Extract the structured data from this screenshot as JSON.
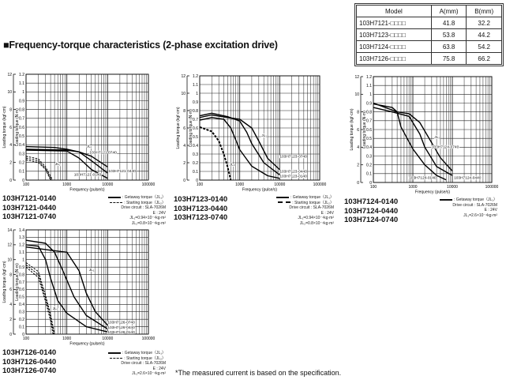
{
  "table": {
    "headers": [
      "Model",
      "A(mm)",
      "B(mm)"
    ],
    "rows": [
      [
        "103H7121-□□□□",
        "41.8",
        "32.2"
      ],
      [
        "103H7123-□□□□",
        "53.8",
        "44.2"
      ],
      [
        "103H7124-□□□□",
        "63.8",
        "54.2"
      ],
      [
        "103H7126-□□□□",
        "75.8",
        "66.2"
      ]
    ]
  },
  "title": "■Frequency-torque characteristics (2-phase excitation drive)",
  "footnote": "*The measured current is based on the specification.",
  "charts": [
    {
      "models": [
        "103H7121-0140",
        "103H7121-0440",
        "103H7121-0740"
      ],
      "legend": {
        "getaway": ": Getaway torque（JL₁）",
        "starting": ": Starting torque（JL₂）",
        "circuit": "Drive circuit : SLA-7026M",
        "voltage": "E : 24V",
        "jl1": "JL₁=0.94×10⁻⁴kg·m²",
        "jl2": "JL₂=0.8×10⁻⁴kg·m²"
      }
    },
    {
      "models": [
        "103H7123-0140",
        "103H7123-0440",
        "103H7123-0740"
      ],
      "legend": {
        "getaway": ": Getaway torque（JL₁）",
        "starting": ": Starting torque（JL₂）",
        "circuit": "Drive circuit : SLA-7026M",
        "voltage": "E : 24V",
        "jl1": "JL₁=0.94×10⁻⁴kg·m²",
        "jl2": "JL₂=0.8×10⁻⁴kg·m²"
      }
    },
    {
      "models": [
        "103H7124-0140",
        "103H7124-0440",
        "103H7124-0740"
      ],
      "legend": {
        "getaway": ": Getaway torque（JL₁）",
        "circuit": "Drive circuit : SLA-7026M",
        "voltage": "E : 24V",
        "jl1": "JL₁=2.6×10⁻⁴kg·m²"
      }
    },
    {
      "models": [
        "103H7126-0140",
        "103H7126-0440",
        "103H7126-0740"
      ],
      "legend": {
        "getaway": ": Getaway torque（JL₁）",
        "starting": ": Starting torque（JL₂）",
        "circuit": "Drive circuit : SLA-7026M",
        "voltage": "E : 24V",
        "jl1": "JL₁=2.6×10⁻⁴kg·m²"
      }
    }
  ],
  "chart_data": [
    {
      "type": "line",
      "xlabel": "Frequency (pulse/s)",
      "ylabel": "Loading torque (N·m)",
      "y2label": "Loading torque (kgf·cm)",
      "xscale": "log",
      "xlim": [
        100,
        100000
      ],
      "ylim": [
        0,
        1.2
      ],
      "y2lim": [
        0,
        12
      ],
      "grid": true,
      "xticks": [
        "100",
        "1000",
        "10000",
        "100000"
      ],
      "yticks": [
        "0",
        "0.1",
        "0.2",
        "0.3",
        "0.4",
        "0.5",
        "0.6",
        "0.7",
        "0.8",
        "0.9",
        "1",
        "1.1",
        "1.2"
      ],
      "y2ticks": [
        "0",
        "2",
        "4",
        "6",
        "8",
        "10",
        "12"
      ],
      "series": [
        {
          "name": "103H7121-0740",
          "style": "solid",
          "points": [
            [
              100,
              0.38
            ],
            [
              500,
              0.37
            ],
            [
              1000,
              0.35
            ],
            [
              2000,
              0.32
            ],
            [
              4000,
              0.27
            ],
            [
              10000,
              0.15
            ]
          ]
        },
        {
          "name": "103H7121-0440",
          "style": "solid",
          "points": [
            [
              100,
              0.35
            ],
            [
              1000,
              0.34
            ],
            [
              2000,
              0.32
            ],
            [
              4000,
              0.22
            ],
            [
              10000,
              0.08
            ]
          ]
        },
        {
          "name": "103H7121-0140",
          "style": "solid",
          "points": [
            [
              100,
              0.34
            ],
            [
              1000,
              0.33
            ],
            [
              2000,
              0.25
            ],
            [
              4000,
              0.12
            ],
            [
              10000,
              0.02
            ]
          ]
        },
        {
          "style": "dashed",
          "points": [
            [
              100,
              0.27
            ],
            [
              200,
              0.24
            ],
            [
              300,
              0.15
            ],
            [
              450,
              0
            ]
          ]
        },
        {
          "style": "dashed",
          "points": [
            [
              100,
              0.25
            ],
            [
              200,
              0.22
            ],
            [
              300,
              0.13
            ],
            [
              420,
              0
            ]
          ]
        },
        {
          "style": "dashed",
          "points": [
            [
              100,
              0.23
            ],
            [
              200,
              0.2
            ],
            [
              300,
              0.12
            ],
            [
              400,
              0
            ]
          ]
        }
      ],
      "annotations": [
        {
          "text": "JL₁",
          "x": 3000,
          "y": 0.37
        },
        {
          "text": "JL₂",
          "x": 520,
          "y": 0.17
        },
        {
          "text": "103H7121-0740",
          "x": 3600,
          "y": 0.3
        },
        {
          "text": "103H7121-0440",
          "x": 10500,
          "y": 0.09
        },
        {
          "text": "103H7121-0140",
          "x": 1500,
          "y": 0.05
        }
      ]
    },
    {
      "type": "line",
      "xlabel": "Frequency (pulse/s)",
      "ylabel": "Loading torque (N·m)",
      "y2label": "Loading torque (kgf·cm)",
      "xscale": "log",
      "xlim": [
        100,
        100000
      ],
      "ylim": [
        0,
        1.2
      ],
      "y2lim": [
        0,
        12
      ],
      "grid": true,
      "xticks": [
        "100",
        "1000",
        "10000",
        "100000"
      ],
      "yticks": [
        "0",
        "0.1",
        "0.2",
        "0.3",
        "0.4",
        "0.5",
        "0.6",
        "0.7",
        "0.8",
        "0.9",
        "1",
        "1.1",
        "1.2"
      ],
      "y2ticks": [
        "0",
        "2",
        "4",
        "6",
        "8",
        "10",
        "12"
      ],
      "series": [
        {
          "name": "103H7123-0740",
          "style": "solid",
          "points": [
            [
              100,
              0.72
            ],
            [
              200,
              0.75
            ],
            [
              500,
              0.72
            ],
            [
              1000,
              0.7
            ],
            [
              2000,
              0.6
            ],
            [
              3000,
              0.45
            ],
            [
              5000,
              0.25
            ],
            [
              10000,
              0.12
            ]
          ]
        },
        {
          "name": "103H7123-0440",
          "style": "solid",
          "points": [
            [
              100,
              0.74
            ],
            [
              200,
              0.77
            ],
            [
              500,
              0.73
            ],
            [
              1000,
              0.68
            ],
            [
              1500,
              0.55
            ],
            [
              2000,
              0.42
            ],
            [
              4000,
              0.2
            ],
            [
              10000,
              0.06
            ]
          ]
        },
        {
          "name": "103H7123-0140",
          "style": "solid",
          "points": [
            [
              100,
              0.69
            ],
            [
              200,
              0.72
            ],
            [
              400,
              0.7
            ],
            [
              600,
              0.6
            ],
            [
              1000,
              0.35
            ],
            [
              2000,
              0.16
            ],
            [
              5000,
              0.05
            ],
            [
              10000,
              0.02
            ]
          ]
        },
        {
          "style": "dashed-thick",
          "points": [
            [
              100,
              0.61
            ],
            [
              200,
              0.56
            ],
            [
              300,
              0.45
            ],
            [
              400,
              0.3
            ],
            [
              500,
              0.15
            ],
            [
              600,
              0
            ]
          ]
        }
      ],
      "annotations": [
        {
          "text": "JL₁",
          "x": 3500,
          "y": 0.5
        },
        {
          "text": "JL₂",
          "x": 550,
          "y": 0.17
        },
        {
          "text": "103H7123-0740",
          "x": 10000,
          "y": 0.26
        },
        {
          "text": "103H7123-0440",
          "x": 10000,
          "y": 0.08
        },
        {
          "text": "103H7123-0140",
          "x": 10000,
          "y": 0.03
        }
      ]
    },
    {
      "type": "line",
      "xlabel": "Frequency (pulse/s)",
      "ylabel": "Loading torque (N·m)",
      "y2label": "Loading torque (kgf·cm)",
      "xscale": "log",
      "xlim": [
        100,
        100000
      ],
      "ylim": [
        0,
        1.2
      ],
      "y2lim": [
        0,
        12
      ],
      "grid": true,
      "xticks": [
        "100",
        "1000",
        "10000",
        "100000"
      ],
      "yticks": [
        "0",
        "0.1",
        "0.2",
        "0.3",
        "0.4",
        "0.5",
        "0.6",
        "0.7",
        "0.8",
        "0.9",
        "1",
        "1.1",
        "1.2"
      ],
      "y2ticks": [
        "0",
        "2",
        "4",
        "6",
        "8",
        "10",
        "12"
      ],
      "series": [
        {
          "name": "103H7124-0140",
          "style": "solid",
          "points": [
            [
              100,
              0.89
            ],
            [
              300,
              0.85
            ],
            [
              400,
              0.8
            ],
            [
              500,
              0.63
            ],
            [
              1000,
              0.38
            ],
            [
              2000,
              0.2
            ],
            [
              4000,
              0.08
            ],
            [
              7000,
              0.03
            ]
          ]
        },
        {
          "name": "103H7124-0440",
          "style": "solid",
          "points": [
            [
              100,
              0.85
            ],
            [
              300,
              0.8
            ],
            [
              800,
              0.75
            ],
            [
              1500,
              0.55
            ],
            [
              2000,
              0.4
            ],
            [
              4000,
              0.18
            ],
            [
              10000,
              0.08
            ]
          ]
        },
        {
          "name": "103H7124-0740",
          "style": "solid",
          "points": [
            [
              100,
              0.9
            ],
            [
              400,
              0.8
            ],
            [
              800,
              0.78
            ],
            [
              1500,
              0.68
            ],
            [
              3000,
              0.45
            ],
            [
              5000,
              0.28
            ],
            [
              10000,
              0.13
            ]
          ]
        }
      ],
      "annotations": [
        {
          "text": "JL₁",
          "x": 3500,
          "y": 0.5
        },
        {
          "text": "103H7124-0740",
          "x": 3000,
          "y": 0.39
        },
        {
          "text": "103H7124-0140",
          "x": 800,
          "y": 0.04
        },
        {
          "text": "103H7124-0440",
          "x": 11000,
          "y": 0.04
        }
      ]
    },
    {
      "type": "line",
      "xlabel": "Frequency (pulse/s)",
      "ylabel": "Loading torque (N·m)",
      "y2label": "Loading torque (kgf·cm)",
      "xscale": "log",
      "xlim": [
        100,
        100000
      ],
      "ylim": [
        0,
        1.4
      ],
      "y2lim": [
        0,
        14
      ],
      "grid": true,
      "xticks": [
        "100",
        "1000",
        "10000",
        "100000"
      ],
      "yticks": [
        "0",
        "0.1",
        "0.2",
        "0.3",
        "0.4",
        "0.5",
        "0.6",
        "0.7",
        "0.8",
        "0.9",
        "1",
        "1.1",
        "1.2",
        "1.3",
        "1.4"
      ],
      "y2ticks": [
        "0",
        "2",
        "4",
        "6",
        "8",
        "10",
        "12",
        "14"
      ],
      "series": [
        {
          "name": "103H7126-0140",
          "style": "solid",
          "points": [
            [
              100,
              1.2
            ],
            [
              200,
              1.18
            ],
            [
              300,
              1.0
            ],
            [
              400,
              0.75
            ],
            [
              600,
              0.45
            ],
            [
              1000,
              0.28
            ],
            [
              3000,
              0.1
            ],
            [
              10000,
              0.03
            ]
          ]
        },
        {
          "name": "103H7126-0440",
          "style": "solid",
          "points": [
            [
              100,
              1.26
            ],
            [
              300,
              1.22
            ],
            [
              500,
              1.1
            ],
            [
              800,
              0.85
            ],
            [
              1500,
              0.5
            ],
            [
              3000,
              0.25
            ],
            [
              10000,
              0.07
            ]
          ]
        },
        {
          "name": "103H7126-0740",
          "style": "solid",
          "points": [
            [
              100,
              1.17
            ],
            [
              500,
              1.12
            ],
            [
              1000,
              1.1
            ],
            [
              2000,
              0.85
            ],
            [
              3000,
              0.55
            ],
            [
              5000,
              0.3
            ],
            [
              10000,
              0.12
            ]
          ]
        },
        {
          "style": "dashed",
          "points": [
            [
              100,
              0.96
            ],
            [
              200,
              0.84
            ],
            [
              300,
              0.52
            ],
            [
              400,
              0.26
            ],
            [
              500,
              0
            ]
          ]
        },
        {
          "style": "dashed",
          "points": [
            [
              100,
              0.93
            ],
            [
              200,
              0.8
            ],
            [
              300,
              0.48
            ],
            [
              400,
              0.22
            ],
            [
              480,
              0
            ]
          ]
        },
        {
          "style": "dashed",
          "points": [
            [
              100,
              0.9
            ],
            [
              200,
              0.76
            ],
            [
              300,
              0.44
            ],
            [
              400,
              0.18
            ],
            [
              460,
              0
            ]
          ]
        }
      ],
      "annotations": [
        {
          "text": "JL₁",
          "x": 3500,
          "y": 0.85
        },
        {
          "text": "JL₂",
          "x": 450,
          "y": 0.33
        },
        {
          "text": "103H7126-0740",
          "x": 10000,
          "y": 0.11
        },
        {
          "text": "103H7126-0440",
          "x": 10000,
          "y": 0.06
        },
        {
          "text": "103H7126-0140",
          "x": 10000,
          "y": 0.01
        }
      ]
    }
  ]
}
